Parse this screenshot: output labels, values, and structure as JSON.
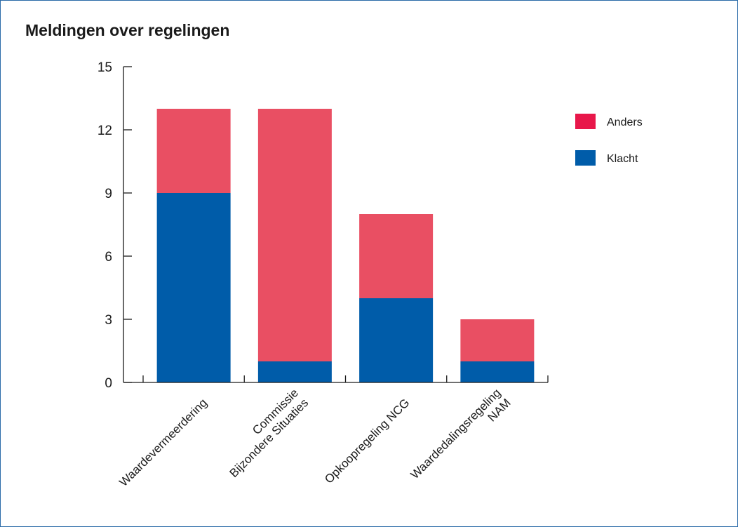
{
  "chart_data": {
    "type": "bar",
    "stacked": true,
    "title": "Meldingen over regelingen",
    "xlabel": "",
    "ylabel": "",
    "ylim": [
      0,
      15
    ],
    "yticks": [
      0,
      3,
      6,
      9,
      12,
      15
    ],
    "grid": false,
    "legend_position": "right",
    "categories": [
      [
        "Waardevermeerdering"
      ],
      [
        "Commissie",
        "Bijzondere Situaties"
      ],
      [
        "Opkoopregeling NCG"
      ],
      [
        "Waardedalingsregeling",
        "NAM"
      ]
    ],
    "series": [
      {
        "name": "Klacht",
        "color": "#005ca9",
        "values": [
          9,
          1,
          4,
          1
        ]
      },
      {
        "name": "Anders",
        "color": "#e94f63",
        "values": [
          4,
          12,
          4,
          2
        ]
      }
    ],
    "legend": [
      {
        "name": "Anders",
        "color": "#e8174a"
      },
      {
        "name": "Klacht",
        "color": "#005ca9"
      }
    ]
  }
}
